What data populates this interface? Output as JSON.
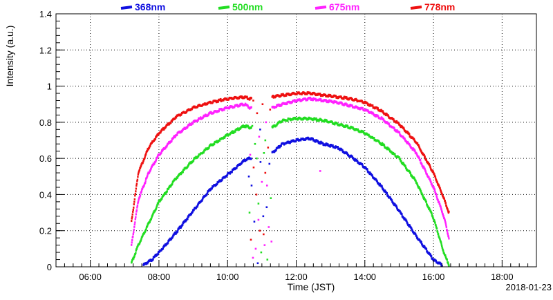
{
  "chart_data": {
    "type": "scatter",
    "xlabel": "Time (JST)",
    "ylabel": "Intensity (a.u.)",
    "date_label": "2018-01-23",
    "xlim": [
      5.0,
      19.0
    ],
    "ylim": [
      0,
      1.4
    ],
    "x_ticks": [
      {
        "value": 6,
        "label": "06:00"
      },
      {
        "value": 8,
        "label": "08:00"
      },
      {
        "value": 10,
        "label": "10:00"
      },
      {
        "value": 12,
        "label": "12:00"
      },
      {
        "value": 14,
        "label": "14:00"
      },
      {
        "value": 16,
        "label": "16:00"
      },
      {
        "value": 18,
        "label": "18:00"
      }
    ],
    "y_ticks": [
      {
        "value": 0,
        "label": "0"
      },
      {
        "value": 0.2,
        "label": "0.2"
      },
      {
        "value": 0.4,
        "label": "0.4"
      },
      {
        "value": 0.6,
        "label": "0.6"
      },
      {
        "value": 0.8,
        "label": "0.8"
      },
      {
        "value": 1.0,
        "label": "1"
      },
      {
        "value": 1.2,
        "label": "1.2"
      },
      {
        "value": 1.4,
        "label": "1.4"
      }
    ],
    "grid": true,
    "legend_position": "top",
    "series": [
      {
        "name": "368nm",
        "color": "#1010e0",
        "x": [
          7.55,
          7.8,
          8.0,
          8.5,
          9.0,
          9.5,
          10.0,
          10.5,
          10.65,
          11.3,
          11.6,
          12.0,
          12.4,
          12.8,
          13.2,
          13.6,
          14.0,
          14.5,
          15.0,
          15.5,
          16.0,
          16.25
        ],
        "y": [
          0.01,
          0.04,
          0.08,
          0.19,
          0.31,
          0.43,
          0.51,
          0.59,
          0.6,
          0.63,
          0.68,
          0.7,
          0.71,
          0.68,
          0.66,
          0.61,
          0.55,
          0.44,
          0.31,
          0.17,
          0.04,
          0.01
        ]
      },
      {
        "name": "500nm",
        "color": "#22dd22",
        "x": [
          7.2,
          7.4,
          7.7,
          8.0,
          8.5,
          9.0,
          9.5,
          10.0,
          10.5,
          10.65,
          11.3,
          11.6,
          12.0,
          12.4,
          12.8,
          13.2,
          13.6,
          14.0,
          14.5,
          15.0,
          15.5,
          16.0,
          16.3,
          16.45
        ],
        "y": [
          0.02,
          0.12,
          0.24,
          0.36,
          0.49,
          0.59,
          0.67,
          0.73,
          0.78,
          0.77,
          0.77,
          0.81,
          0.82,
          0.82,
          0.81,
          0.79,
          0.77,
          0.74,
          0.68,
          0.6,
          0.47,
          0.27,
          0.08,
          0.01
        ]
      },
      {
        "name": "675nm",
        "color": "#ff22ff",
        "x": [
          7.2,
          7.4,
          7.7,
          8.0,
          8.5,
          9.0,
          9.5,
          10.0,
          10.5,
          10.65,
          11.3,
          11.6,
          12.0,
          12.4,
          12.8,
          13.2,
          13.6,
          14.0,
          14.5,
          15.0,
          15.5,
          16.0,
          16.3,
          16.45
        ],
        "y": [
          0.12,
          0.37,
          0.52,
          0.62,
          0.73,
          0.8,
          0.85,
          0.88,
          0.9,
          0.88,
          0.88,
          0.9,
          0.92,
          0.93,
          0.92,
          0.91,
          0.89,
          0.87,
          0.82,
          0.74,
          0.63,
          0.44,
          0.28,
          0.16
        ]
      },
      {
        "name": "778nm",
        "color": "#ee1111",
        "x": [
          7.2,
          7.4,
          7.7,
          8.0,
          8.5,
          9.0,
          9.5,
          10.0,
          10.5,
          10.65,
          11.3,
          11.6,
          12.0,
          12.4,
          12.8,
          13.2,
          13.6,
          14.0,
          14.5,
          15.0,
          15.5,
          16.0,
          16.3,
          16.45
        ],
        "y": [
          0.25,
          0.52,
          0.66,
          0.74,
          0.83,
          0.88,
          0.91,
          0.93,
          0.94,
          0.93,
          0.94,
          0.95,
          0.96,
          0.96,
          0.95,
          0.94,
          0.93,
          0.91,
          0.86,
          0.79,
          0.69,
          0.52,
          0.38,
          0.3
        ]
      }
    ],
    "scatter_points": [
      {
        "x": 10.62,
        "y": 0.5,
        "s": 0
      },
      {
        "x": 10.64,
        "y": 0.3,
        "s": 1
      },
      {
        "x": 10.66,
        "y": 0.62,
        "s": 2
      },
      {
        "x": 10.68,
        "y": 0.15,
        "s": 3
      },
      {
        "x": 10.7,
        "y": 0.45,
        "s": 0
      },
      {
        "x": 10.72,
        "y": 0.78,
        "s": 1
      },
      {
        "x": 10.74,
        "y": 0.05,
        "s": 2
      },
      {
        "x": 10.76,
        "y": 0.55,
        "s": 3
      },
      {
        "x": 10.78,
        "y": 0.25,
        "s": 0
      },
      {
        "x": 10.8,
        "y": 0.68,
        "s": 1
      },
      {
        "x": 10.82,
        "y": 0.1,
        "s": 2
      },
      {
        "x": 10.84,
        "y": 0.4,
        "s": 3
      },
      {
        "x": 10.86,
        "y": 0.85,
        "s": 3
      },
      {
        "x": 10.88,
        "y": 0.02,
        "s": 0
      },
      {
        "x": 10.9,
        "y": 0.35,
        "s": 1
      },
      {
        "x": 10.92,
        "y": 0.72,
        "s": 2
      },
      {
        "x": 10.94,
        "y": 0.2,
        "s": 3
      },
      {
        "x": 10.96,
        "y": 0.58,
        "s": 0
      },
      {
        "x": 10.98,
        "y": 0.08,
        "s": 1
      },
      {
        "x": 11.0,
        "y": 0.47,
        "s": 2
      },
      {
        "x": 11.02,
        "y": 0.9,
        "s": 3
      },
      {
        "x": 11.04,
        "y": 0.28,
        "s": 0
      },
      {
        "x": 11.06,
        "y": 0.63,
        "s": 1
      },
      {
        "x": 11.08,
        "y": 0.12,
        "s": 2
      },
      {
        "x": 11.1,
        "y": 0.52,
        "s": 3
      },
      {
        "x": 11.12,
        "y": 0.8,
        "s": 2
      },
      {
        "x": 11.14,
        "y": 0.33,
        "s": 0
      },
      {
        "x": 11.16,
        "y": 0.04,
        "s": 1
      },
      {
        "x": 11.18,
        "y": 0.66,
        "s": 3
      },
      {
        "x": 11.2,
        "y": 0.22,
        "s": 2
      },
      {
        "x": 11.22,
        "y": 0.57,
        "s": 0
      },
      {
        "x": 11.24,
        "y": 0.87,
        "s": 3
      },
      {
        "x": 11.26,
        "y": 0.38,
        "s": 1
      },
      {
        "x": 11.28,
        "y": 0.14,
        "s": 2
      },
      {
        "x": 10.95,
        "y": 0.76,
        "s": 0
      },
      {
        "x": 11.05,
        "y": 0.18,
        "s": 3
      },
      {
        "x": 10.85,
        "y": 0.6,
        "s": 1
      },
      {
        "x": 11.15,
        "y": 0.45,
        "s": 2
      },
      {
        "x": 10.75,
        "y": 0.92,
        "s": 3
      },
      {
        "x": 10.9,
        "y": 0.26,
        "s": 2
      },
      {
        "x": 11.1,
        "y": 0.7,
        "s": 1
      },
      {
        "x": 12.7,
        "y": 0.53,
        "s": 2
      }
    ]
  }
}
